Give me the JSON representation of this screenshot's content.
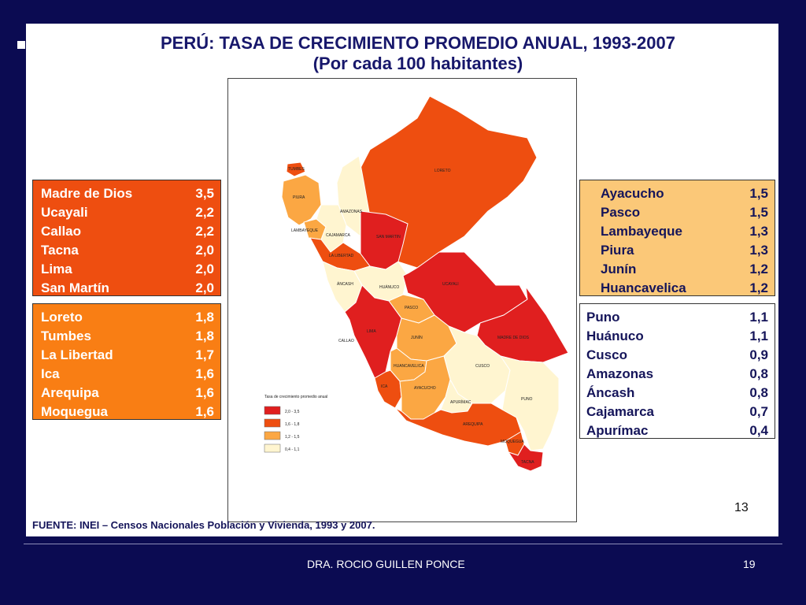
{
  "title": {
    "line1": "PERÚ: TASA DE CRECIMIENTO PROMEDIO ANUAL, 1993-2007",
    "line2": "(Por cada 100 habitantes)"
  },
  "colors": {
    "red": "#e01f1f",
    "dark_orange": "#ee4e10",
    "orange": "#f97e14",
    "light_orange": "#fba743",
    "cream": "#fff5d0",
    "slide_bg": "#0b0b52"
  },
  "tables": {
    "red": [
      {
        "name": "Madre de Dios",
        "value": "3,5"
      },
      {
        "name": "Ucayali",
        "value": "2,2"
      },
      {
        "name": "Callao",
        "value": "2,2"
      },
      {
        "name": "Tacna",
        "value": "2,0"
      },
      {
        "name": "Lima",
        "value": "2,0"
      },
      {
        "name": "San Martín",
        "value": "2,0"
      }
    ],
    "orange": [
      {
        "name": "Loreto",
        "value": "1,8"
      },
      {
        "name": "Tumbes",
        "value": "1,8"
      },
      {
        "name": "La Libertad",
        "value": "1,7"
      },
      {
        "name": "Ica",
        "value": "1,6"
      },
      {
        "name": "Arequipa",
        "value": "1,6"
      },
      {
        "name": "Moquegua",
        "value": "1,6"
      }
    ],
    "peach": [
      {
        "name": "Ayacucho",
        "value": "1,5"
      },
      {
        "name": "Pasco",
        "value": "1,5"
      },
      {
        "name": "Lambayeque",
        "value": "1,3"
      },
      {
        "name": "Piura",
        "value": "1,3"
      },
      {
        "name": "Junín",
        "value": "1,2"
      },
      {
        "name": "Huancavelica",
        "value": "1,2"
      }
    ],
    "white": [
      {
        "name": "Puno",
        "value": "1,1"
      },
      {
        "name": "Huánuco",
        "value": "1,1"
      },
      {
        "name": "Cusco",
        "value": "0,9"
      },
      {
        "name": "Amazonas",
        "value": "0,8"
      },
      {
        "name": "Áncash",
        "value": "0,8"
      },
      {
        "name": "Cajamarca",
        "value": "0,7"
      },
      {
        "name": "Apurímac",
        "value": "0,4"
      }
    ]
  },
  "map": {
    "region_labels": {
      "loreto": "LORETO",
      "tumbes": "TUMBES",
      "piura": "PIURA",
      "amazonas": "AMAZONAS",
      "lambayeque": "LAMBAYEQUE",
      "cajamarca": "CAJAMARCA",
      "san_martin": "SAN MARTIN",
      "la_libertad": "LA LIBERTAD",
      "ancash": "ÁNCASH",
      "huanuco": "HUÁNUCO",
      "ucayali": "UCAYALI",
      "pasco": "PASCO",
      "callao": "CALLAO",
      "lima": "LIMA",
      "junin": "JUNÍN",
      "madre_de_dios": "MADRE DE DIOS",
      "huancavelica": "HUANCAVELICA",
      "cusco": "CUSCO",
      "ica": "ICA",
      "ayacucho": "AYACUCHO",
      "apurimac": "APURÍMAC",
      "puno": "PUNO",
      "arequipa": "AREQUIPA",
      "moquegua": "MOQUEGUA",
      "tacna": "TACNA"
    },
    "legend": {
      "title": "Tasa de crecimiento promedio anual",
      "items": [
        {
          "label": "2,0 - 3,5",
          "color": "#e01f1f"
        },
        {
          "label": "1,6 - 1,8",
          "color": "#ee4e10"
        },
        {
          "label": "1,2 - 1,5",
          "color": "#fba743"
        },
        {
          "label": "0,4 - 1,1",
          "color": "#fff5d0"
        }
      ]
    }
  },
  "inner_page_number": "13",
  "source": "FUENTE: INEI – Censos Nacionales Población y Vivienda, 1993 y 2007.",
  "footer": {
    "author": "DRA. ROCIO GUILLEN PONCE",
    "page": "19"
  }
}
